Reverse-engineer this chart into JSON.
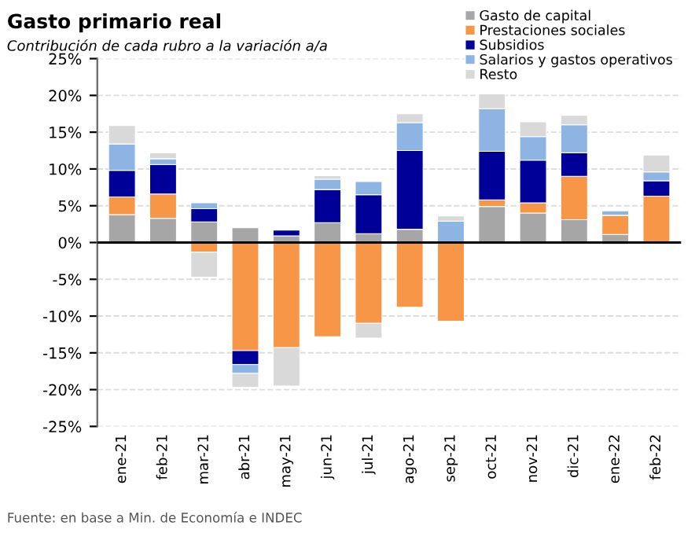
{
  "chart_data": {
    "type": "bar",
    "title": "Gasto primario real",
    "subtitle": "Contribución de cada rubro a la variación a/a",
    "categories": [
      "ene-21",
      "feb-21",
      "mar-21",
      "abr-21",
      "may-21",
      "jun-21",
      "jul-21",
      "ago-21",
      "sep-21",
      "oct-21",
      "nov-21",
      "dic-21",
      "ene-22",
      "feb-22"
    ],
    "stacked": true,
    "series": [
      {
        "name": "Gasto de capital",
        "color": "#a6a6a6",
        "values": [
          3.8,
          3.3,
          2.8,
          2.0,
          0.9,
          2.7,
          1.2,
          1.8,
          null,
          4.9,
          4.0,
          3.1,
          1.1,
          null
        ]
      },
      {
        "name": "Prestaciones sociales",
        "color": "#f79646",
        "values": [
          2.4,
          3.3,
          -1.3,
          -14.7,
          -14.3,
          -12.8,
          -11.0,
          -8.8,
          -10.7,
          0.9,
          1.4,
          5.9,
          2.6,
          6.3
        ]
      },
      {
        "name": "Subsidios",
        "color": "#000099",
        "values": [
          3.6,
          4.0,
          1.8,
          -1.9,
          0.8,
          4.5,
          5.3,
          10.7,
          null,
          6.6,
          5.8,
          3.2,
          null,
          2.1
        ]
      },
      {
        "name": "Salarios y gastos operativos",
        "color": "#8db4e2",
        "values": [
          3.6,
          0.8,
          0.8,
          -1.2,
          null,
          1.4,
          1.8,
          3.8,
          2.9,
          5.8,
          3.2,
          3.8,
          0.6,
          1.2
        ]
      },
      {
        "name": "Resto",
        "color": "#d9d9d9",
        "values": [
          2.5,
          0.8,
          -3.4,
          -1.9,
          -5.2,
          0.5,
          -2.0,
          1.2,
          0.7,
          2.0,
          2.0,
          1.3,
          -0.3,
          2.3
        ]
      }
    ],
    "ylim": [
      -25,
      25
    ],
    "yticks": [
      {
        "value": -25,
        "label": "-25%"
      },
      {
        "value": -20,
        "label": "-20%"
      },
      {
        "value": -15,
        "label": "-15%"
      },
      {
        "value": -10,
        "label": "-10%"
      },
      {
        "value": -5,
        "label": "-5%"
      },
      {
        "value": 0,
        "label": "0%"
      },
      {
        "value": 5,
        "label": "5%"
      },
      {
        "value": 10,
        "label": "10%"
      },
      {
        "value": 15,
        "label": "15%"
      },
      {
        "value": 20,
        "label": "20%"
      },
      {
        "value": 25,
        "label": "25%"
      }
    ],
    "grid": "y",
    "legend": "top right",
    "annotations": [
      "Fuente: en base a Min. de Economía e INDEC"
    ]
  }
}
